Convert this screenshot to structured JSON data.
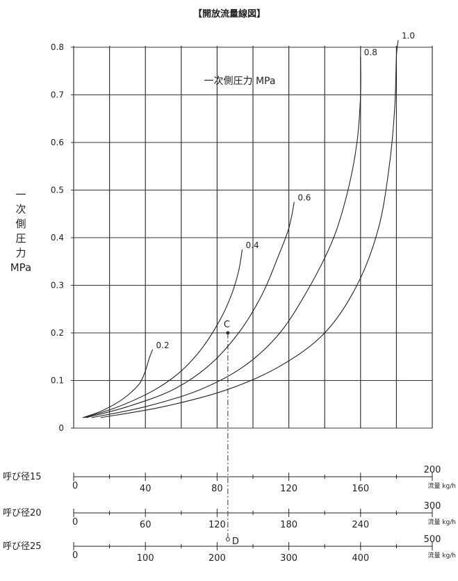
{
  "chart_data": {
    "type": "line",
    "title": "【開放流量線図】",
    "inner_label": "一次側圧力 MPa",
    "ylabel_lines": [
      "一",
      "次",
      "側",
      "圧",
      "力",
      "MPa"
    ],
    "yticks": [
      "0",
      "0.1",
      "0.2",
      "0.3",
      "0.4",
      "0.5",
      "0.6",
      "0.7",
      "0.8"
    ],
    "ylim": [
      0,
      0.8
    ],
    "xlim": [
      0,
      200
    ],
    "series": [
      {
        "name": "0.2",
        "points": [
          [
            5,
            0.022
          ],
          [
            15,
            0.035
          ],
          [
            25,
            0.055
          ],
          [
            32,
            0.075
          ],
          [
            37,
            0.095
          ],
          [
            40,
            0.12
          ],
          [
            42,
            0.145
          ],
          [
            44,
            0.165
          ]
        ]
      },
      {
        "name": "0.4",
        "points": [
          [
            6,
            0.022
          ],
          [
            25,
            0.045
          ],
          [
            45,
            0.08
          ],
          [
            60,
            0.12
          ],
          [
            72,
            0.17
          ],
          [
            82,
            0.23
          ],
          [
            88,
            0.28
          ],
          [
            92,
            0.33
          ],
          [
            94,
            0.375
          ]
        ]
      },
      {
        "name": "0.6",
        "points": [
          [
            7,
            0.022
          ],
          [
            30,
            0.045
          ],
          [
            55,
            0.08
          ],
          [
            75,
            0.13
          ],
          [
            92,
            0.2
          ],
          [
            105,
            0.28
          ],
          [
            114,
            0.36
          ],
          [
            120,
            0.42
          ],
          [
            123,
            0.475
          ]
        ]
      },
      {
        "name": "0.8",
        "points": [
          [
            10,
            0.022
          ],
          [
            40,
            0.045
          ],
          [
            70,
            0.08
          ],
          [
            95,
            0.13
          ],
          [
            115,
            0.2
          ],
          [
            132,
            0.3
          ],
          [
            145,
            0.4
          ],
          [
            153,
            0.5
          ],
          [
            158,
            0.6
          ],
          [
            160,
            0.7
          ],
          [
            160,
            0.78
          ]
        ]
      },
      {
        "name": "1.0",
        "points": [
          [
            15,
            0.022
          ],
          [
            50,
            0.045
          ],
          [
            85,
            0.08
          ],
          [
            115,
            0.13
          ],
          [
            140,
            0.2
          ],
          [
            158,
            0.3
          ],
          [
            170,
            0.42
          ],
          [
            176,
            0.55
          ],
          [
            179,
            0.67
          ],
          [
            180,
            0.78
          ],
          [
            181,
            0.815
          ]
        ]
      }
    ],
    "point_C": {
      "label": "C",
      "x": 86,
      "y": 0.2
    },
    "scales": [
      {
        "name": "呼び径15",
        "ticks": [
          "0",
          "40",
          "80",
          "120",
          "160",
          "200"
        ],
        "unit": "流量 kg/h"
      },
      {
        "name": "呼び径20",
        "ticks": [
          "0",
          "60",
          "120",
          "180",
          "240",
          "300"
        ],
        "unit": "流量 kg/h"
      },
      {
        "name": "呼び径25",
        "ticks": [
          "0",
          "100",
          "200",
          "300",
          "400",
          "500"
        ],
        "unit": "流量 kg/h"
      }
    ],
    "point_D": {
      "label": "D"
    }
  }
}
